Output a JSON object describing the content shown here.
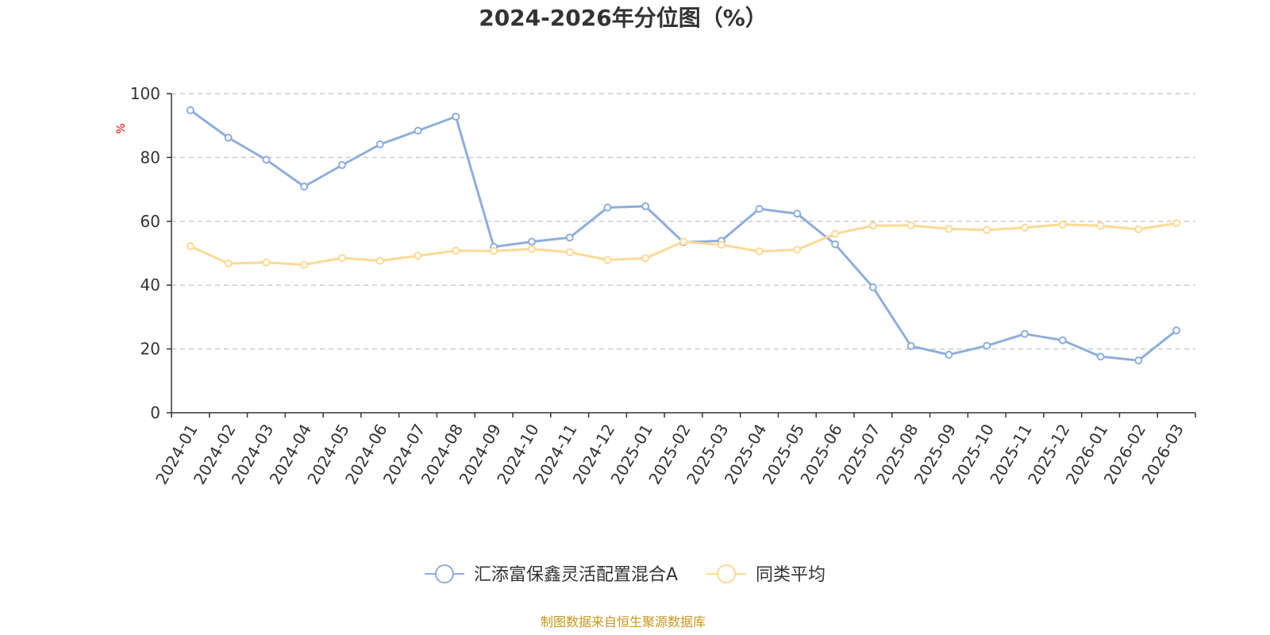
{
  "chart_data": {
    "type": "line",
    "title": "2024-2026年分位图（%）",
    "ylabel": "%",
    "xlabel": "",
    "ylim": [
      0,
      100
    ],
    "y_ticks": [
      0,
      20,
      40,
      60,
      80,
      100
    ],
    "grid": true,
    "legend_position": "bottom-center",
    "categories": [
      "2024-01",
      "2024-02",
      "2024-03",
      "2024-04",
      "2024-05",
      "2024-06",
      "2024-07",
      "2024-08",
      "2024-09",
      "2024-10",
      "2024-11",
      "2024-12",
      "2025-01",
      "2025-02",
      "2025-03",
      "2025-04",
      "2025-05",
      "2025-06",
      "2025-07",
      "2025-08",
      "2025-09",
      "2025-10",
      "2025-11",
      "2025-12",
      "2026-01",
      "2026-02",
      "2026-03"
    ],
    "series": [
      {
        "name": "汇添富保鑫灵活配置混合A",
        "color": "#8eaedb",
        "values": [
          94.8,
          86.2,
          79.3,
          70.9,
          77.6,
          84.1,
          88.4,
          92.8,
          52.0,
          53.6,
          54.9,
          64.3,
          64.7,
          53.4,
          53.9,
          63.9,
          62.4,
          52.8,
          39.3,
          20.9,
          18.2,
          21.0,
          24.7,
          22.7,
          17.6,
          16.4,
          25.8
        ]
      },
      {
        "name": "同类平均",
        "color": "#fcd995",
        "values": [
          52.2,
          46.8,
          47.1,
          46.4,
          48.5,
          47.6,
          49.2,
          50.8,
          50.7,
          51.3,
          50.3,
          47.9,
          48.4,
          53.6,
          52.6,
          50.6,
          51.1,
          56.1,
          58.6,
          58.7,
          57.6,
          57.3,
          58.0,
          59.0,
          58.6,
          57.5,
          59.4
        ]
      }
    ]
  },
  "source_text": "制图数据来自恒生聚源数据库"
}
